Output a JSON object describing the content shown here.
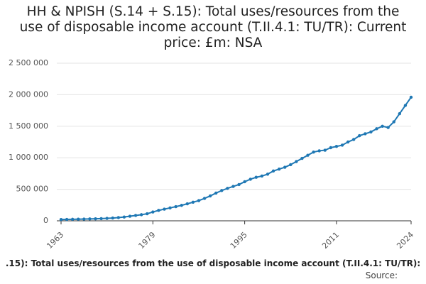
{
  "chart_data": {
    "type": "line",
    "title": "HH & NPISH (S.14 + S.15): Total uses/resources from the use of disposable income account (T.II.4.1: TU/TR): Current price: £m: NSA",
    "footer": ".15): Total uses/resources from the use of disposable income account (T.II.4.1: TU/TR):",
    "source": "Source:",
    "color": "#1f78b4",
    "x": [
      1963,
      1964,
      1965,
      1966,
      1967,
      1968,
      1969,
      1970,
      1971,
      1972,
      1973,
      1974,
      1975,
      1976,
      1977,
      1978,
      1979,
      1980,
      1981,
      1982,
      1983,
      1984,
      1985,
      1986,
      1987,
      1988,
      1989,
      1990,
      1991,
      1992,
      1993,
      1994,
      1995,
      1996,
      1997,
      1998,
      1999,
      2000,
      2001,
      2002,
      2003,
      2004,
      2005,
      2006,
      2007,
      2008,
      2009,
      2010,
      2011,
      2012,
      2013,
      2014,
      2015,
      2016,
      2017,
      2018,
      2019,
      2020,
      2021,
      2022,
      2023,
      2024
    ],
    "values": [
      20000,
      22000,
      24000,
      26000,
      28000,
      30000,
      32000,
      35000,
      39000,
      44000,
      51000,
      60000,
      73000,
      85000,
      97000,
      112000,
      140000,
      165000,
      185000,
      205000,
      225000,
      245000,
      270000,
      295000,
      320000,
      355000,
      395000,
      440000,
      480000,
      515000,
      545000,
      575000,
      620000,
      660000,
      690000,
      710000,
      740000,
      790000,
      820000,
      850000,
      890000,
      940000,
      990000,
      1040000,
      1090000,
      1110000,
      1120000,
      1160000,
      1180000,
      1200000,
      1250000,
      1290000,
      1350000,
      1380000,
      1410000,
      1460000,
      1500000,
      1480000,
      1570000,
      1700000,
      1830000,
      1960000
    ],
    "xlim": [
      1963,
      2024
    ],
    "xticks": [
      1963,
      1979,
      1995,
      2011,
      2024
    ],
    "ylim": [
      0,
      2500000
    ],
    "yticks": [
      0,
      {
        "value": 500000,
        "label": "500 000"
      },
      {
        "value": 1000000,
        "label": "1 000 000"
      },
      {
        "value": 1500000,
        "label": "1 500 000"
      },
      {
        "value": 2000000,
        "label": "2 000 000"
      },
      {
        "value": 2500000,
        "label": "2 500 000"
      }
    ],
    "grid": true
  }
}
